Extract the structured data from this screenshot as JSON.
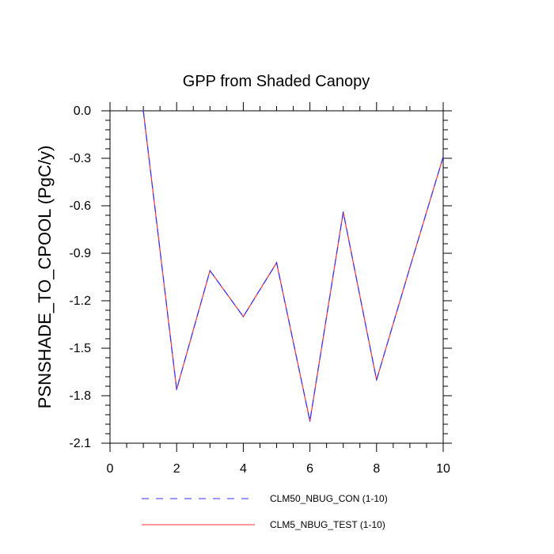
{
  "chart_data": {
    "type": "line",
    "title": "GPP from Shaded Canopy",
    "xlabel": "",
    "ylabel": "PSNSHADE_TO_CPOOL  (PgC/y)",
    "xlim": [
      0,
      10
    ],
    "ylim": [
      -2.1,
      0.0
    ],
    "xticks": [
      0,
      2,
      4,
      6,
      8,
      10
    ],
    "xtick_labels": [
      "0",
      "2",
      "4",
      "6",
      "8",
      "10"
    ],
    "yticks": [
      0.0,
      -0.3,
      -0.6,
      -0.9,
      -1.2,
      -1.5,
      -1.8,
      -2.1
    ],
    "ytick_labels": [
      "0.0",
      "-0.3",
      "-0.6",
      "-0.9",
      "-1.2",
      "-1.5",
      "-1.8",
      "-2.1"
    ],
    "grid": false,
    "legend_position": "bottom",
    "x": [
      1,
      2,
      3,
      4,
      5,
      6,
      7,
      8,
      9,
      10
    ],
    "series": [
      {
        "name": "CLM50_NBUG_CON (1-10)",
        "color": "#3333ff",
        "dash": "dashed",
        "values": [
          0.0,
          -1.76,
          -1.01,
          -1.3,
          -0.96,
          -1.96,
          -0.64,
          -1.7,
          -0.99,
          -0.29
        ]
      },
      {
        "name": "CLM5_NBUG_TEST (1-10)",
        "color": "#ff3333",
        "dash": "solid",
        "values": [
          0.0,
          -1.76,
          -1.01,
          -1.3,
          -0.96,
          -1.96,
          -0.64,
          -1.7,
          -0.99,
          -0.29
        ]
      }
    ]
  }
}
